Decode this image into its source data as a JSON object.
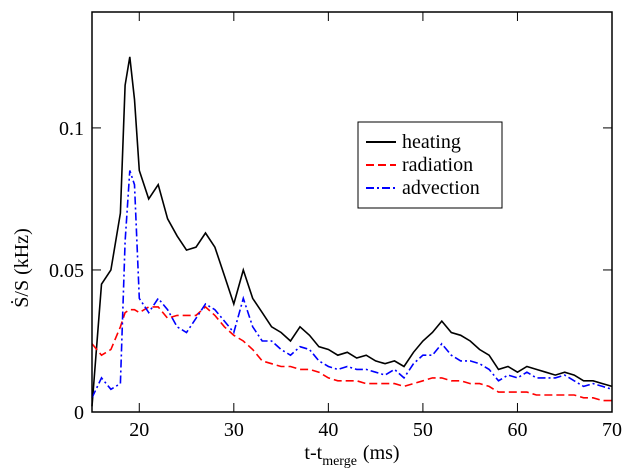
{
  "chart_data": {
    "type": "line",
    "xlabel": {
      "main": "t-t",
      "sub": "merge",
      "unit": "(ms)"
    },
    "ylabel": "Ṡ/S (kHz)",
    "xlim": [
      15,
      70
    ],
    "ylim": [
      0,
      0.1408
    ],
    "xticks": [
      20,
      30,
      40,
      50,
      60,
      70
    ],
    "yticks": [
      0,
      0.05,
      0.1
    ],
    "legend": "upper-right",
    "x": [
      15,
      16,
      17,
      18,
      18.5,
      19,
      19.5,
      20,
      21,
      22,
      23,
      24,
      25,
      26,
      27,
      28,
      29,
      30,
      31,
      32,
      33,
      34,
      35,
      36,
      37,
      38,
      39,
      40,
      41,
      42,
      43,
      44,
      45,
      46,
      47,
      48,
      49,
      50,
      51,
      52,
      53,
      54,
      55,
      56,
      57,
      58,
      59,
      60,
      61,
      62,
      63,
      64,
      65,
      66,
      67,
      68,
      69,
      70
    ],
    "series": [
      {
        "name": "heating",
        "color": "#000000",
        "dash": "none",
        "values": [
          0.002,
          0.045,
          0.05,
          0.07,
          0.115,
          0.125,
          0.11,
          0.085,
          0.075,
          0.08,
          0.068,
          0.062,
          0.057,
          0.058,
          0.063,
          0.058,
          0.048,
          0.038,
          0.05,
          0.04,
          0.035,
          0.03,
          0.028,
          0.025,
          0.03,
          0.027,
          0.023,
          0.022,
          0.02,
          0.021,
          0.019,
          0.02,
          0.018,
          0.017,
          0.018,
          0.016,
          0.021,
          0.025,
          0.028,
          0.032,
          0.028,
          0.027,
          0.025,
          0.022,
          0.02,
          0.015,
          0.016,
          0.014,
          0.016,
          0.015,
          0.014,
          0.013,
          0.014,
          0.013,
          0.011,
          0.011,
          0.01,
          0.009
        ]
      },
      {
        "name": "radiation",
        "color": "#ff0000",
        "dash": "8,4",
        "values": [
          0.024,
          0.02,
          0.022,
          0.03,
          0.035,
          0.036,
          0.036,
          0.035,
          0.037,
          0.037,
          0.033,
          0.034,
          0.034,
          0.034,
          0.037,
          0.034,
          0.03,
          0.027,
          0.025,
          0.022,
          0.018,
          0.017,
          0.016,
          0.016,
          0.015,
          0.015,
          0.014,
          0.012,
          0.011,
          0.011,
          0.011,
          0.01,
          0.01,
          0.01,
          0.01,
          0.009,
          0.01,
          0.011,
          0.012,
          0.012,
          0.011,
          0.011,
          0.01,
          0.01,
          0.009,
          0.007,
          0.007,
          0.007,
          0.007,
          0.006,
          0.006,
          0.006,
          0.006,
          0.006,
          0.005,
          0.005,
          0.004,
          0.004
        ]
      },
      {
        "name": "advection",
        "color": "#0000ff",
        "dash": "8,3,2,3",
        "values": [
          0.005,
          0.012,
          0.008,
          0.01,
          0.06,
          0.085,
          0.08,
          0.04,
          0.035,
          0.04,
          0.036,
          0.03,
          0.028,
          0.033,
          0.038,
          0.036,
          0.032,
          0.028,
          0.04,
          0.03,
          0.025,
          0.025,
          0.022,
          0.02,
          0.023,
          0.022,
          0.018,
          0.016,
          0.015,
          0.016,
          0.015,
          0.015,
          0.014,
          0.013,
          0.015,
          0.012,
          0.017,
          0.02,
          0.02,
          0.024,
          0.02,
          0.018,
          0.018,
          0.017,
          0.015,
          0.011,
          0.013,
          0.012,
          0.014,
          0.012,
          0.012,
          0.012,
          0.013,
          0.011,
          0.009,
          0.01,
          0.009,
          0.008
        ]
      }
    ]
  }
}
